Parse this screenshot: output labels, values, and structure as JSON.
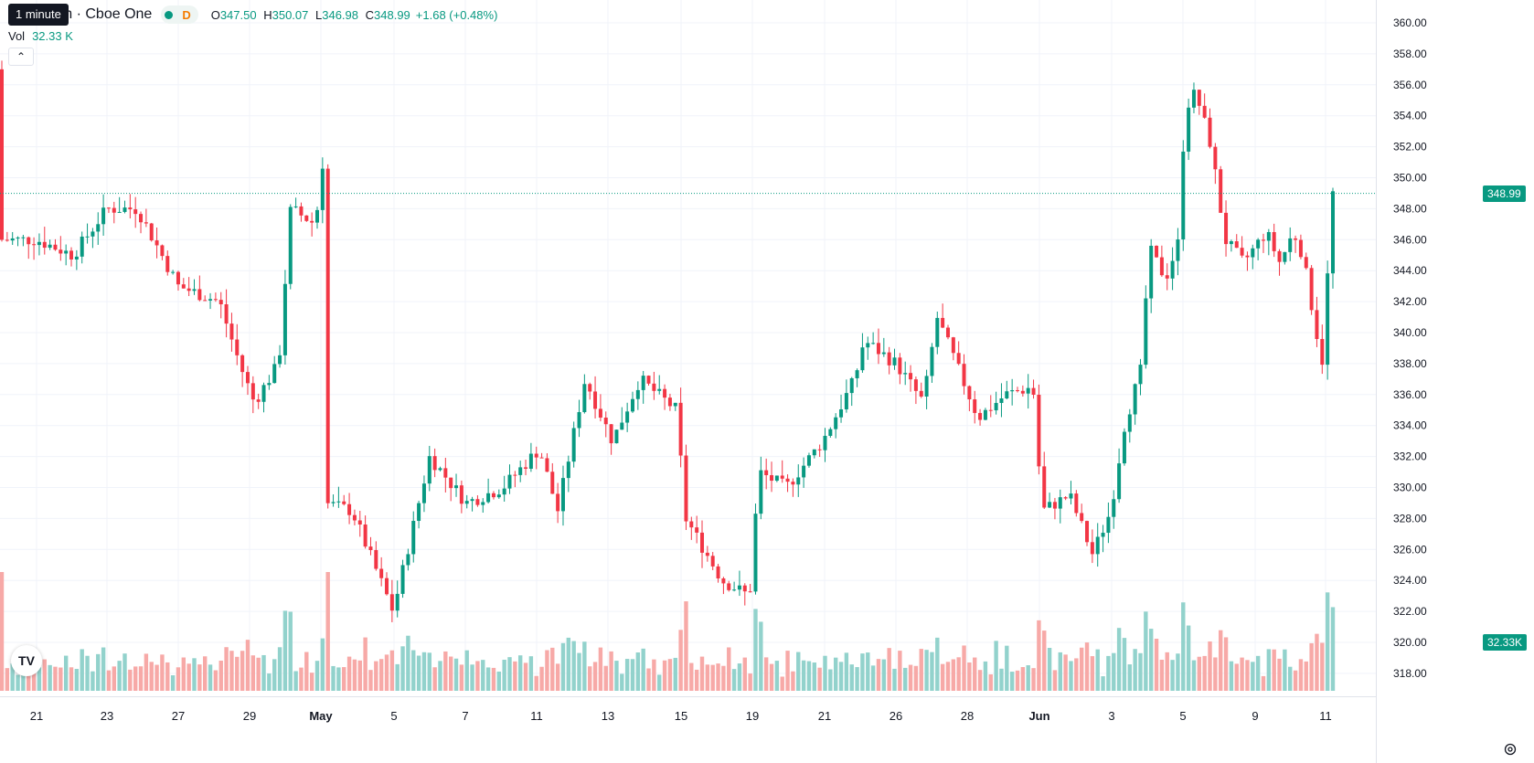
{
  "header": {
    "tooltip": "1 minute",
    "symbol_title": "n Inc. · 1h · Cboe One",
    "status_letter": "D",
    "ohlc": [
      {
        "k": "O",
        "v": "347.50"
      },
      {
        "k": "H",
        "v": "350.07"
      },
      {
        "k": "L",
        "v": "346.98"
      },
      {
        "k": "C",
        "v": "348.99"
      }
    ],
    "change": "+1.68 (+0.48%)",
    "volume_label": "Vol",
    "volume_value": "32.33 K",
    "collapse_icon": "chevron-up-icon"
  },
  "badges": {
    "last_price": "348.99",
    "last_volume": "32.33K"
  },
  "colors": {
    "up": "#089981",
    "down": "#f23645",
    "up_vol": "#92d2cc",
    "down_vol": "#f7a9a7",
    "grid": "#f0f3fa",
    "axis_text": "#131722"
  },
  "icons": {
    "logo": "tradingview-logo-icon",
    "settings": "gear-icon"
  },
  "logo_text": "TV",
  "chart_data": {
    "type": "candlestick",
    "interval": "1h",
    "y_axis": {
      "min": 316.2,
      "max": 361.2,
      "position": "right",
      "ticks": [
        "318.00",
        "320.00",
        "322.00",
        "324.00",
        "326.00",
        "328.00",
        "330.00",
        "332.00",
        "334.00",
        "336.00",
        "338.00",
        "340.00",
        "342.00",
        "344.00",
        "346.00",
        "348.00",
        "350.00",
        "352.00",
        "354.00",
        "356.00",
        "358.00",
        "360.00"
      ]
    },
    "x_axis": {
      "labels": [
        "21",
        "23",
        "27",
        "29",
        "May",
        "5",
        "7",
        "11",
        "13",
        "15",
        "19",
        "21",
        "26",
        "28",
        "Jun",
        "3",
        "5",
        "9",
        "11"
      ]
    },
    "grid": true,
    "last_price_line": 348.99,
    "series_anchors": [
      {
        "p": 355,
        "c": 352.0
      },
      {
        "p": 40,
        "c": 346.0
      },
      {
        "p": 80,
        "c": 345.0
      },
      {
        "p": 117,
        "c": 348.0
      },
      {
        "p": 150,
        "c": 348.0
      },
      {
        "p": 195,
        "c": 343.0
      },
      {
        "p": 240,
        "c": 342.0
      },
      {
        "p": 262,
        "c": 338.0
      },
      {
        "p": 278,
        "c": 335.5
      },
      {
        "p": 305,
        "c": 338.0
      },
      {
        "p": 318,
        "c": 348.0
      },
      {
        "p": 345,
        "c": 347.0
      },
      {
        "p": 356,
        "c": 329.0
      },
      {
        "p": 385,
        "c": 328.5
      },
      {
        "p": 430,
        "c": 322.0
      },
      {
        "p": 470,
        "c": 332.0
      },
      {
        "p": 510,
        "c": 329.0
      },
      {
        "p": 550,
        "c": 330.0
      },
      {
        "p": 590,
        "c": 332.5
      },
      {
        "p": 610,
        "c": 328.5
      },
      {
        "p": 640,
        "c": 337.0
      },
      {
        "p": 670,
        "c": 333.0
      },
      {
        "p": 700,
        "c": 337.0
      },
      {
        "p": 740,
        "c": 335.0
      },
      {
        "p": 750,
        "c": 328.0
      },
      {
        "p": 790,
        "c": 324.0
      },
      {
        "p": 820,
        "c": 323.0
      },
      {
        "p": 830,
        "c": 331.0
      },
      {
        "p": 860,
        "c": 330.0
      },
      {
        "p": 900,
        "c": 333.0
      },
      {
        "p": 935,
        "c": 337.0
      },
      {
        "p": 945,
        "c": 339.5
      },
      {
        "p": 980,
        "c": 338.0
      },
      {
        "p": 1010,
        "c": 335.5
      },
      {
        "p": 1025,
        "c": 341.0
      },
      {
        "p": 1070,
        "c": 334.5
      },
      {
        "p": 1100,
        "c": 336.0
      },
      {
        "p": 1130,
        "c": 336.5
      },
      {
        "p": 1140,
        "c": 328.5
      },
      {
        "p": 1170,
        "c": 329.5
      },
      {
        "p": 1195,
        "c": 325.7
      },
      {
        "p": 1215,
        "c": 328.5
      },
      {
        "p": 1230,
        "c": 334.0
      },
      {
        "p": 1250,
        "c": 338.0
      },
      {
        "p": 1256,
        "c": 345.5
      },
      {
        "p": 1275,
        "c": 343.5
      },
      {
        "p": 1290,
        "c": 346.0
      },
      {
        "p": 1296,
        "c": 354.5
      },
      {
        "p": 1308,
        "c": 355.5
      },
      {
        "p": 1325,
        "c": 352.0
      },
      {
        "p": 1340,
        "c": 346.0
      },
      {
        "p": 1360,
        "c": 344.5
      },
      {
        "p": 1385,
        "c": 346.5
      },
      {
        "p": 1400,
        "c": 344.5
      },
      {
        "p": 1415,
        "c": 346.5
      },
      {
        "p": 1425,
        "c": 345.0
      },
      {
        "p": 1440,
        "c": 340.0
      },
      {
        "p": 1447,
        "c": 338.0
      },
      {
        "p": 1452,
        "c": 343.5
      },
      {
        "p": 1458,
        "c": 348.99
      }
    ],
    "volume_pattern_k": [
      14,
      9,
      11,
      9,
      13,
      10,
      17,
      12,
      16,
      10,
      8,
      12,
      15,
      11,
      9,
      13,
      18,
      10,
      12,
      14,
      11,
      9,
      16,
      13,
      10,
      12,
      8,
      15,
      11,
      14
    ],
    "candle_count": 250
  }
}
